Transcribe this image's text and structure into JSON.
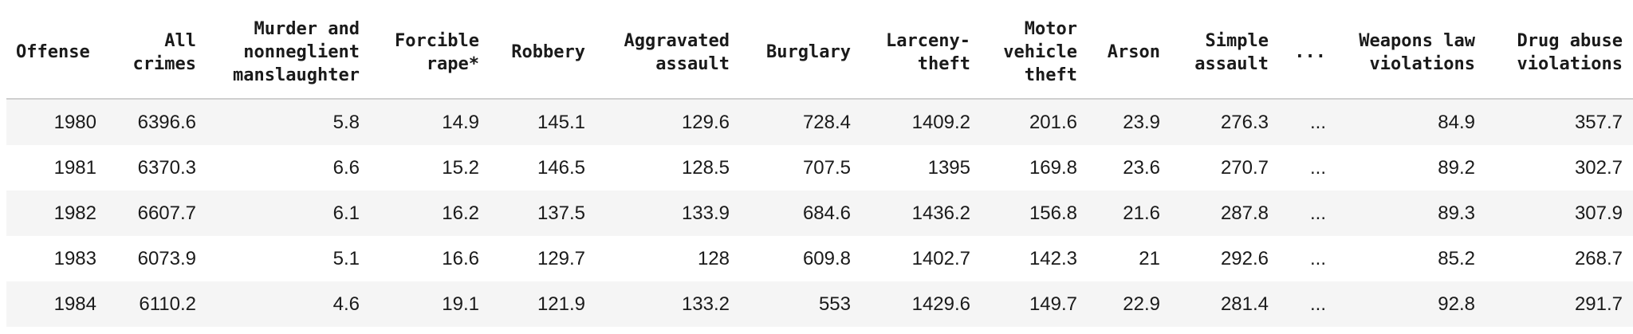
{
  "columns": [
    "Offense",
    "All crimes",
    "Murder and nonneglient manslaughter",
    "Forcible rape*",
    "Robbery",
    "Aggravated assault",
    "Burglary",
    "Larceny-theft",
    "Motor vehicle theft",
    "Arson",
    "Simple assault",
    "...",
    "Weapons law violations",
    "Drug abuse violations"
  ],
  "rows": [
    [
      "1980",
      "6396.6",
      "5.8",
      "14.9",
      "145.1",
      "129.6",
      "728.4",
      "1409.2",
      "201.6",
      "23.9",
      "276.3",
      "...",
      "84.9",
      "357.7"
    ],
    [
      "1981",
      "6370.3",
      "6.6",
      "15.2",
      "146.5",
      "128.5",
      "707.5",
      "1395",
      "169.8",
      "23.6",
      "270.7",
      "...",
      "89.2",
      "302.7"
    ],
    [
      "1982",
      "6607.7",
      "6.1",
      "16.2",
      "137.5",
      "133.9",
      "684.6",
      "1436.2",
      "156.8",
      "21.6",
      "287.8",
      "...",
      "89.3",
      "307.9"
    ],
    [
      "1983",
      "6073.9",
      "5.1",
      "16.6",
      "129.7",
      "128",
      "609.8",
      "1402.7",
      "142.3",
      "21",
      "292.6",
      "...",
      "85.2",
      "268.7"
    ],
    [
      "1984",
      "6110.2",
      "4.6",
      "19.1",
      "121.9",
      "133.2",
      "553",
      "1429.6",
      "149.7",
      "22.9",
      "281.4",
      "...",
      "92.8",
      "291.7"
    ]
  ]
}
